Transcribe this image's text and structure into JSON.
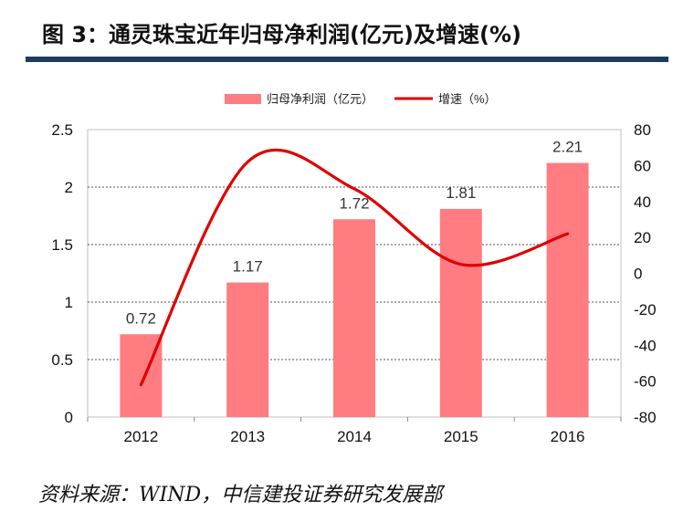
{
  "header": {
    "title": "图 3：通灵珠宝近年归母净利润(亿元)及增速(%)"
  },
  "footer": {
    "source": "资料来源：WIND，中信建投证券研究发展部"
  },
  "chart_data": {
    "type": "bar+line",
    "categories": [
      "2012",
      "2013",
      "2014",
      "2015",
      "2016"
    ],
    "series": [
      {
        "name": "归母净利润（亿元）",
        "type": "bar",
        "axis": "left",
        "color": "#FF7C80",
        "values": [
          0.72,
          1.17,
          1.72,
          1.81,
          2.21
        ],
        "labels": [
          "0.72",
          "1.17",
          "1.72",
          "1.81",
          "2.21"
        ]
      },
      {
        "name": "增速（%）",
        "type": "line",
        "axis": "right",
        "color": "#E00000",
        "values": [
          -62,
          62,
          47,
          5,
          22
        ]
      }
    ],
    "left_axis": {
      "min": 0,
      "max": 2.5,
      "ticks": [
        "0",
        "0.5",
        "1",
        "1.5",
        "2",
        "2.5"
      ]
    },
    "right_axis": {
      "min": -80,
      "max": 80,
      "ticks": [
        "-80",
        "-60",
        "-40",
        "-20",
        "0",
        "20",
        "40",
        "60",
        "80"
      ]
    },
    "legend": [
      "归母净利润（亿元）",
      "增速（%）"
    ],
    "legend_position": "top"
  }
}
